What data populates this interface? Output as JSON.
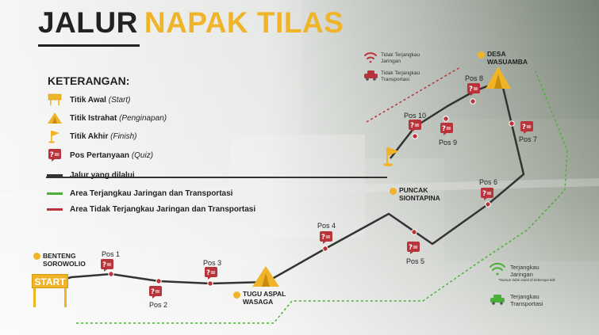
{
  "title": {
    "word1": "JALUR",
    "word2": "NAPAK TILAS"
  },
  "legend": {
    "heading": "KETERANGAN:",
    "items": [
      {
        "bold": "Titik Awal",
        "italic": "(Start)",
        "icon": "start-sign-icon"
      },
      {
        "bold": "Titik Istrahat",
        "italic": "(Penginapan)",
        "icon": "tent-icon"
      },
      {
        "bold": "Titik Akhir",
        "italic": "(Finish)",
        "icon": "finish-flag-icon"
      },
      {
        "bold": "Pos Pertanyaan",
        "italic": "(Quiz)",
        "icon": "quiz-icon"
      },
      {
        "bold": "Jalur yang dilalui",
        "italic": "",
        "color": "#333333"
      },
      {
        "bold": "Area Terjangkau Jaringan dan Transportasi",
        "italic": "",
        "color": "#4caf3a"
      },
      {
        "bold": "Area Tidak Terjangkau Jaringan dan Transportasi",
        "italic": "",
        "color": "#b8333a"
      }
    ]
  },
  "places": {
    "start": "START",
    "benteng": [
      "BENTENG",
      "SOROWOLIO"
    ],
    "tugu": [
      "TUGU ASPAL",
      "WASAGA"
    ],
    "puncak": [
      "PUNCAK",
      "SIONTAPINA"
    ],
    "desa": [
      "DESA",
      "WASUAMBA"
    ]
  },
  "posts": [
    "Pos 1",
    "Pos 2",
    "Pos 3",
    "Pos 4",
    "Pos 5",
    "Pos 6",
    "Pos 7",
    "Pos 8",
    "Pos 9",
    "Pos 10"
  ],
  "side_notes": {
    "no_signal": [
      "Tidak Terjangkau",
      "Jaringan"
    ],
    "no_transport": [
      "Tidak Terjangkau",
      "Transportasi"
    ],
    "signal": [
      "Terjangkau",
      "Jaringan"
    ],
    "signal_note": "*Namun tidak stabil di beberapa titik",
    "transport": [
      "Terjangkau",
      "Transportasi"
    ]
  },
  "colors": {
    "accent": "#f0b428",
    "route": "#333333",
    "reachable": "#4caf3a",
    "unreachable": "#b8333a",
    "quiz": "#b8333a"
  }
}
